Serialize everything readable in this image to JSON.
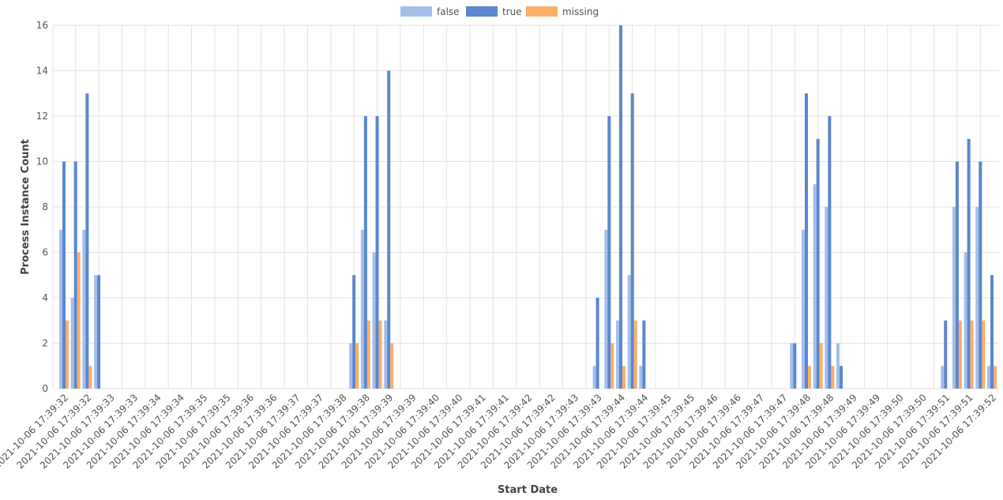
{
  "chart_data": {
    "type": "bar",
    "x_label": "Start Date",
    "y_label": "Process Instance Count",
    "ylim": [
      0,
      16
    ],
    "yticks": [
      0,
      2,
      4,
      6,
      8,
      10,
      12,
      14,
      16
    ],
    "grid": true,
    "legend": "top",
    "categories": [
      "2021-10-06 17:39:32",
      null,
      "2021-10-06 17:39:32",
      null,
      "2021-10-06 17:39:33",
      null,
      "2021-10-06 17:39:33",
      null,
      "2021-10-06 17:39:34",
      null,
      "2021-10-06 17:39:34",
      null,
      "2021-10-06 17:39:35",
      null,
      "2021-10-06 17:39:35",
      null,
      "2021-10-06 17:39:36",
      null,
      "2021-10-06 17:39:36",
      null,
      "2021-10-06 17:39:37",
      null,
      "2021-10-06 17:39:37",
      null,
      "2021-10-06 17:39:38",
      null,
      "2021-10-06 17:39:38",
      null,
      "2021-10-06 17:39:39",
      null,
      "2021-10-06 17:39:39",
      null,
      "2021-10-06 17:39:40",
      null,
      "2021-10-06 17:39:40",
      null,
      "2021-10-06 17:39:41",
      null,
      "2021-10-06 17:39:41",
      null,
      "2021-10-06 17:39:42",
      null,
      "2021-10-06 17:39:42",
      null,
      "2021-10-06 17:39:43",
      null,
      "2021-10-06 17:39:43",
      null,
      "2021-10-06 17:39:44",
      null,
      "2021-10-06 17:39:44",
      null,
      "2021-10-06 17:39:45",
      null,
      "2021-10-06 17:39:45",
      null,
      "2021-10-06 17:39:46",
      null,
      "2021-10-06 17:39:46",
      null,
      "2021-10-06 17:39:47",
      null,
      "2021-10-06 17:39:47",
      null,
      "2021-10-06 17:39:48",
      null,
      "2021-10-06 17:39:48",
      null,
      "2021-10-06 17:39:49",
      null,
      "2021-10-06 17:39:49",
      null,
      "2021-10-06 17:39:50",
      null,
      "2021-10-06 17:39:50",
      null,
      "2021-10-06 17:39:51",
      null,
      "2021-10-06 17:39:51",
      null,
      "2021-10-06 17:39:52"
    ],
    "series": [
      {
        "name": "false",
        "color": "#a4bfea",
        "values": [
          7,
          4,
          7,
          5,
          0,
          0,
          0,
          0,
          0,
          0,
          0,
          0,
          0,
          0,
          0,
          0,
          0,
          0,
          0,
          0,
          0,
          0,
          0,
          0,
          0,
          2,
          7,
          6,
          3,
          0,
          0,
          0,
          0,
          0,
          0,
          0,
          0,
          0,
          0,
          0,
          0,
          0,
          0,
          0,
          0,
          0,
          1,
          7,
          3,
          5,
          1,
          0,
          0,
          0,
          0,
          0,
          0,
          0,
          0,
          0,
          0,
          0,
          0,
          2,
          7,
          9,
          8,
          2,
          0,
          0,
          0,
          0,
          0,
          0,
          0,
          0,
          1,
          8,
          6,
          8,
          1
        ]
      },
      {
        "name": "true",
        "color": "#5a87ce",
        "values": [
          10,
          10,
          13,
          5,
          0,
          0,
          0,
          0,
          0,
          0,
          0,
          0,
          0,
          0,
          0,
          0,
          0,
          0,
          0,
          0,
          0,
          0,
          0,
          0,
          0,
          5,
          12,
          12,
          14,
          0,
          0,
          0,
          0,
          0,
          0,
          0,
          0,
          0,
          0,
          0,
          0,
          0,
          0,
          0,
          0,
          0,
          4,
          12,
          16,
          13,
          3,
          0,
          0,
          0,
          0,
          0,
          0,
          0,
          0,
          0,
          0,
          0,
          0,
          2,
          13,
          11,
          12,
          1,
          0,
          0,
          0,
          0,
          0,
          0,
          0,
          0,
          3,
          10,
          11,
          10,
          5
        ]
      },
      {
        "name": "missing",
        "color": "#fbae6a",
        "values": [
          3,
          6,
          1,
          0,
          0,
          0,
          0,
          0,
          0,
          0,
          0,
          0,
          0,
          0,
          0,
          0,
          0,
          0,
          0,
          0,
          0,
          0,
          0,
          0,
          0,
          2,
          3,
          3,
          2,
          0,
          0,
          0,
          0,
          0,
          0,
          0,
          0,
          0,
          0,
          0,
          0,
          0,
          0,
          0,
          0,
          0,
          0,
          2,
          1,
          3,
          0,
          0,
          0,
          0,
          0,
          0,
          0,
          0,
          0,
          0,
          0,
          0,
          0,
          0,
          1,
          2,
          1,
          0,
          0,
          0,
          0,
          0,
          0,
          0,
          0,
          0,
          0,
          3,
          3,
          3,
          1
        ]
      }
    ]
  }
}
